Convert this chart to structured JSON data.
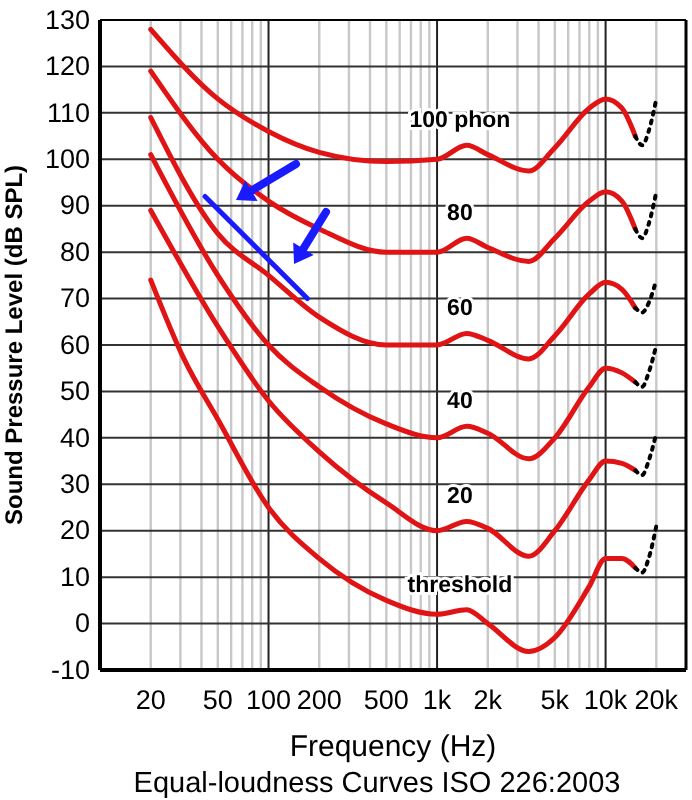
{
  "chart_data": {
    "type": "line",
    "title": "Equal-loudness Curves ISO 226:2003",
    "xlabel": "Frequency (Hz)",
    "ylabel": "Sound Pressure Level (dB SPL)",
    "log": "x",
    "grid": true,
    "marker": "none",
    "xlim": [
      10,
      30000
    ],
    "ylim": [
      -10,
      130
    ],
    "xticks": [
      20,
      {
        "value": 30,
        "label": null
      },
      {
        "value": 40,
        "label": null
      },
      50,
      {
        "value": 60,
        "label": null
      },
      {
        "value": 70,
        "label": null
      },
      {
        "value": 80,
        "label": null
      },
      {
        "value": 90,
        "label": null
      },
      100,
      200,
      {
        "value": 300,
        "label": null
      },
      {
        "value": 400,
        "label": null
      },
      500,
      {
        "value": 600,
        "label": null
      },
      {
        "value": 700,
        "label": null
      },
      {
        "value": 800,
        "label": null
      },
      {
        "value": 900,
        "label": null
      },
      {
        "value": 1000,
        "label": "1k"
      },
      {
        "value": 2000,
        "label": "2k"
      },
      {
        "value": 3000,
        "label": null
      },
      {
        "value": 4000,
        "label": null
      },
      {
        "value": 5000,
        "label": "5k"
      },
      {
        "value": 6000,
        "label": null
      },
      {
        "value": 7000,
        "label": null
      },
      {
        "value": 8000,
        "label": null
      },
      {
        "value": 9000,
        "label": null
      },
      {
        "value": 10000,
        "label": "10k"
      },
      {
        "value": 20000,
        "label": "20k"
      }
    ],
    "yticks": [
      -10,
      0,
      10,
      20,
      30,
      40,
      50,
      60,
      70,
      80,
      90,
      100,
      110,
      120,
      130
    ],
    "series": [
      {
        "name": "100 phon",
        "color": "#e01414",
        "line_style": "solid",
        "x": [
          20,
          50,
          100,
          200,
          500,
          1000,
          1500,
          2000,
          3500,
          5000,
          8000,
          10000,
          12500,
          15000
        ],
        "values": [
          128,
          113,
          106,
          101.5,
          99.5,
          100,
          103,
          101,
          97.5,
          102.5,
          111,
          113,
          111,
          105
        ]
      },
      {
        "name": "80",
        "color": "#e01414",
        "line_style": "solid",
        "x": [
          20,
          50,
          100,
          200,
          500,
          1000,
          1500,
          2000,
          3500,
          5000,
          8000,
          10000,
          12500,
          15000
        ],
        "values": [
          119,
          100,
          91,
          85,
          80,
          80,
          83,
          81,
          78,
          83,
          91,
          93,
          91,
          85
        ]
      },
      {
        "name": "60",
        "color": "#e01414",
        "line_style": "solid",
        "x": [
          20,
          50,
          100,
          200,
          500,
          1000,
          1500,
          2000,
          3500,
          5000,
          8000,
          10000,
          12500,
          15000
        ],
        "values": [
          109,
          84,
          75,
          66,
          60,
          60,
          62.5,
          61,
          57,
          62,
          71,
          73.5,
          72,
          68
        ]
      },
      {
        "name": "40",
        "color": "#e01414",
        "line_style": "solid",
        "x": [
          20,
          50,
          100,
          200,
          500,
          1000,
          1500,
          2000,
          3500,
          5000,
          8000,
          10000,
          12500,
          15000
        ],
        "values": [
          101,
          75,
          60,
          51,
          43,
          40,
          42.5,
          41,
          35.5,
          40,
          51,
          55,
          54,
          52
        ]
      },
      {
        "name": "20",
        "color": "#e01414",
        "line_style": "solid",
        "x": [
          20,
          50,
          100,
          200,
          500,
          1000,
          1500,
          2000,
          3500,
          5000,
          8000,
          10000,
          12500,
          15000
        ],
        "values": [
          89,
          64,
          48,
          37,
          26,
          20,
          22,
          20.5,
          14.5,
          20,
          31,
          35,
          34.5,
          33
        ]
      },
      {
        "name": "threshold",
        "color": "#e01414",
        "line_style": "solid",
        "x": [
          20,
          31.5,
          50,
          100,
          200,
          500,
          1000,
          1500,
          2000,
          3500,
          5000,
          8000,
          10000,
          12500,
          15000
        ],
        "values": [
          74,
          57,
          44,
          25,
          14,
          5,
          2,
          3,
          0,
          -6,
          -3,
          8,
          14,
          14,
          12
        ]
      },
      {
        "color": "#000000",
        "line_style": "dotted",
        "x": [
          15000,
          16500,
          18000,
          20000
        ],
        "values": [
          105,
          103,
          106,
          113
        ]
      },
      {
        "color": "#000000",
        "line_style": "dotted",
        "x": [
          15000,
          16500,
          18000,
          20000
        ],
        "values": [
          85,
          83,
          86,
          93
        ]
      },
      {
        "color": "#000000",
        "line_style": "dotted",
        "x": [
          15000,
          16500,
          18000,
          20000
        ],
        "values": [
          68,
          67,
          69,
          74
        ]
      },
      {
        "color": "#000000",
        "line_style": "dotted",
        "x": [
          15000,
          16500,
          18000,
          20000
        ],
        "values": [
          52,
          51,
          54,
          60
        ]
      },
      {
        "color": "#000000",
        "line_style": "dotted",
        "x": [
          15000,
          16500,
          18000,
          20000
        ],
        "values": [
          33,
          32,
          35,
          41
        ]
      },
      {
        "color": "#000000",
        "line_style": "dotted",
        "x": [
          15000,
          16500,
          18000,
          20000
        ],
        "values": [
          12,
          11,
          14,
          21
        ]
      },
      {
        "color": "#1a1aff",
        "line_style": "solid",
        "x": [
          42,
          170
        ],
        "values": [
          92,
          70
        ]
      }
    ]
  }
}
